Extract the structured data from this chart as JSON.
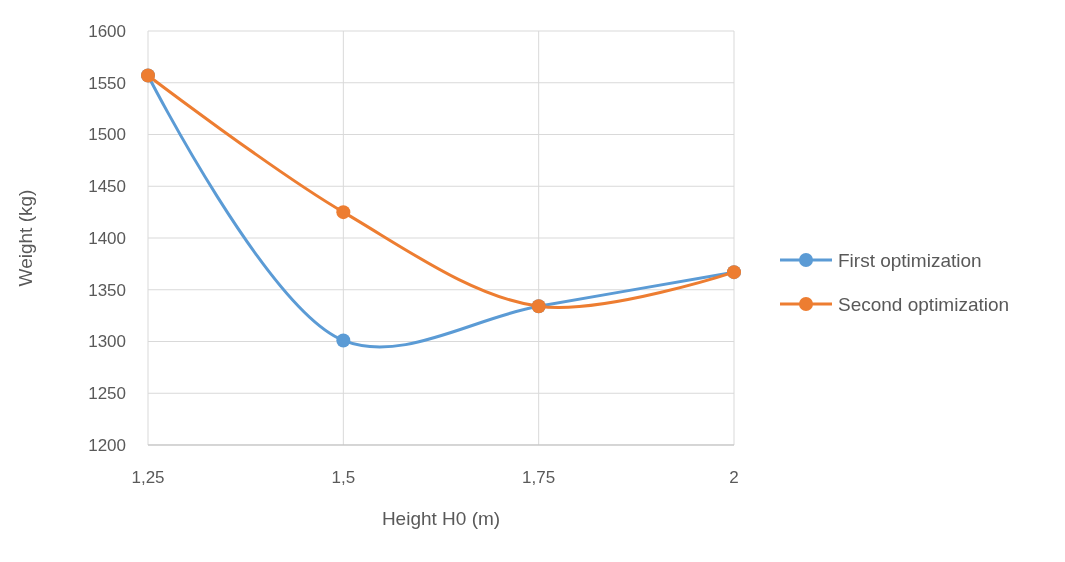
{
  "chart_data": {
    "type": "line",
    "xlabel": "Height H0 (m)",
    "ylabel": "Weight (kg)",
    "x": [
      1.25,
      1.5,
      1.75,
      2
    ],
    "series": [
      {
        "name": "First optimization",
        "color": "#5b9bd5",
        "values": [
          1557,
          1301,
          1334,
          1367
        ]
      },
      {
        "name": "Second optimization",
        "color": "#ed7d31",
        "values": [
          1557,
          1425,
          1334,
          1367
        ]
      }
    ],
    "xlim": [
      1.25,
      2
    ],
    "xticks": [
      {
        "value": 1.25,
        "label": "1,25"
      },
      {
        "value": 1.5,
        "label": "1,5"
      },
      {
        "value": 1.75,
        "label": "1,75"
      },
      {
        "value": 2,
        "label": "2"
      }
    ],
    "ylim": [
      1200,
      1600
    ],
    "yticks": [
      1200,
      1250,
      1300,
      1350,
      1400,
      1450,
      1500,
      1550,
      1600
    ],
    "grid": true,
    "legend": "right",
    "marker": "circle",
    "line_style": "solid"
  }
}
